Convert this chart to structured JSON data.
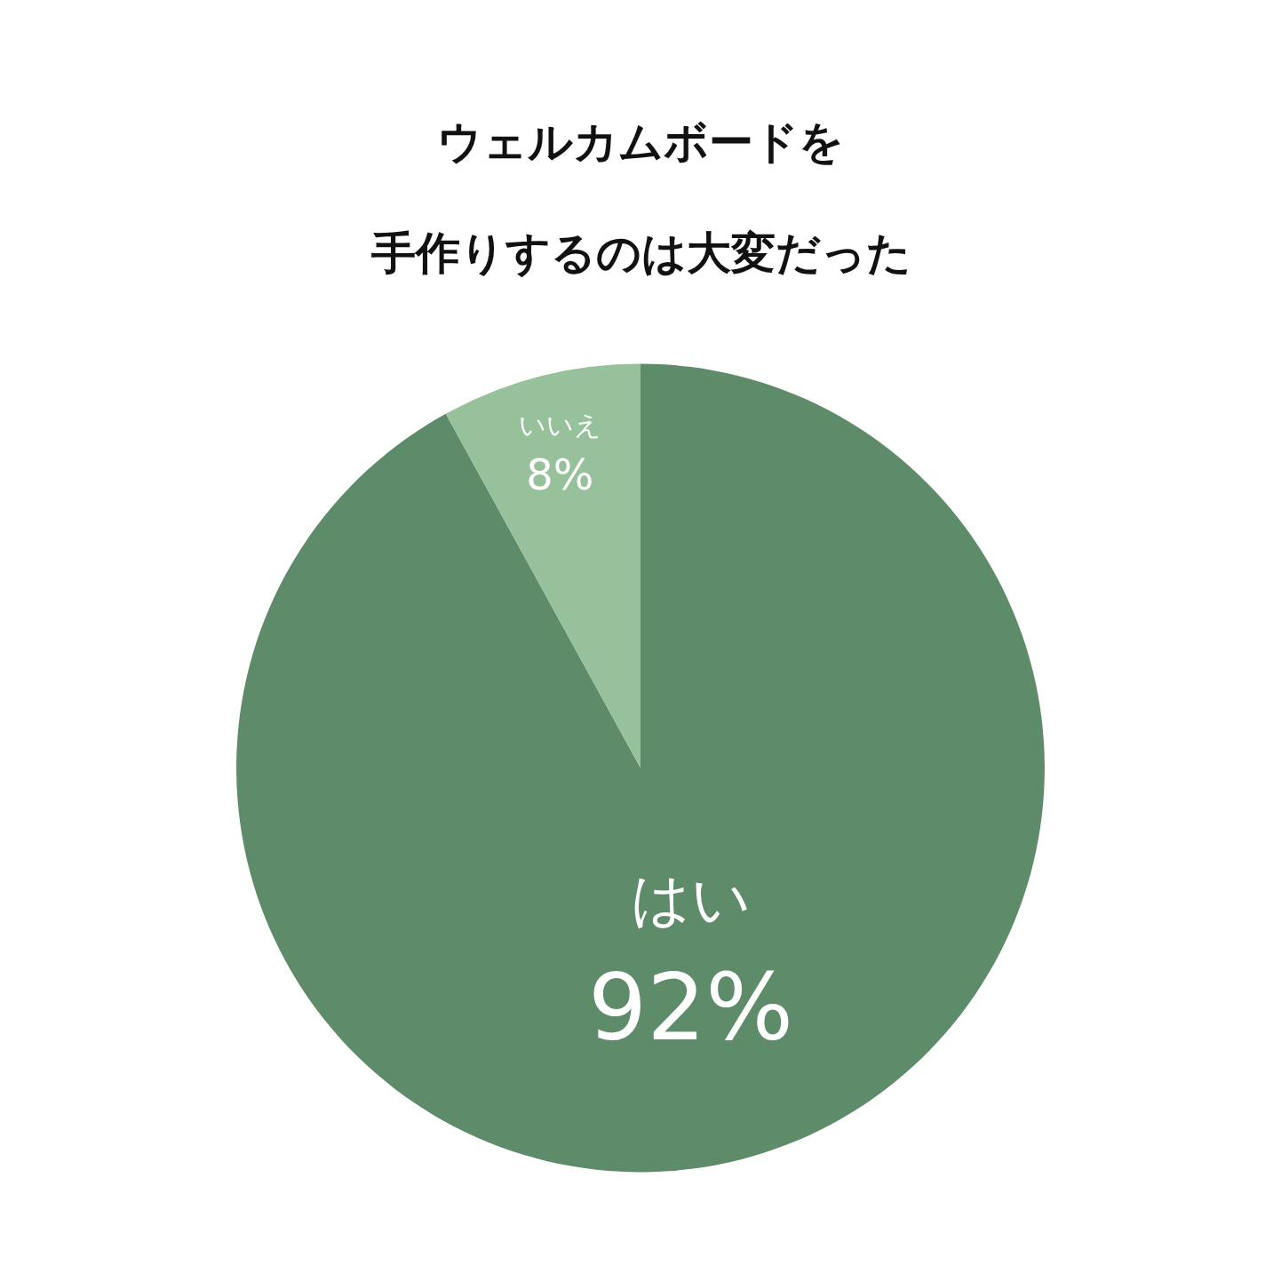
{
  "chart_data": {
    "type": "pie",
    "title": "ウェルカムボードを",
    "subtitle": "手作りするのは大変だった",
    "categories": [
      "はい",
      "いいえ"
    ],
    "values": [
      92,
      8
    ],
    "value_labels": [
      "92%",
      "8%"
    ],
    "colors": [
      "#5e8b69",
      "#97c19b"
    ],
    "legend": false
  }
}
